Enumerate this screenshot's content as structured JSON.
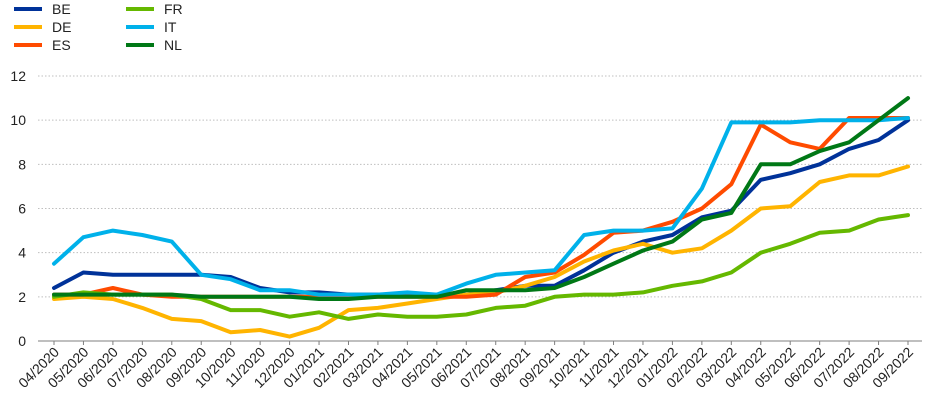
{
  "chart_data": {
    "type": "line",
    "title": "",
    "xlabel": "",
    "ylabel": "",
    "ylim": [
      0,
      12
    ],
    "yticks": [
      0,
      2,
      4,
      6,
      8,
      10,
      12
    ],
    "grid": "horizontal",
    "legend_position": "top-left",
    "x": [
      "04/2020",
      "05/2020",
      "06/2020",
      "07/2020",
      "08/2020",
      "09/2020",
      "10/2020",
      "11/2020",
      "12/2020",
      "01/2021",
      "02/2021",
      "03/2021",
      "04/2021",
      "05/2021",
      "06/2021",
      "07/2021",
      "08/2021",
      "09/2021",
      "10/2021",
      "11/2021",
      "12/2021",
      "01/2022",
      "02/2022",
      "03/2022",
      "04/2022",
      "05/2022",
      "06/2022",
      "07/2022",
      "08/2022",
      "09/2022"
    ],
    "series": [
      {
        "name": "BE",
        "color": "#003299",
        "values": [
          2.4,
          3.1,
          3.0,
          3.0,
          3.0,
          3.0,
          2.9,
          2.4,
          2.2,
          2.2,
          2.1,
          2.1,
          2.1,
          2.1,
          2.1,
          2.3,
          2.5,
          2.5,
          3.2,
          4.0,
          4.5,
          4.8,
          5.6,
          5.9,
          7.3,
          7.6,
          8.0,
          8.7,
          9.1,
          10.0
        ]
      },
      {
        "name": "DE",
        "color": "#FFB400",
        "values": [
          1.9,
          2.0,
          1.9,
          1.5,
          1.0,
          0.9,
          0.4,
          0.5,
          0.2,
          0.6,
          1.4,
          1.5,
          1.7,
          1.9,
          2.1,
          2.2,
          2.5,
          2.9,
          3.6,
          4.1,
          4.4,
          4.0,
          4.2,
          5.0,
          6.0,
          6.1,
          7.2,
          7.5,
          7.5,
          7.9
        ]
      },
      {
        "name": "ES",
        "color": "#FF4B00",
        "values": [
          2.1,
          2.1,
          2.4,
          2.1,
          2.0,
          2.0,
          2.0,
          2.0,
          2.0,
          2.0,
          2.0,
          2.0,
          2.0,
          2.0,
          2.0,
          2.1,
          2.9,
          3.1,
          3.9,
          4.9,
          5.0,
          5.4,
          6.0,
          7.1,
          9.8,
          9.0,
          8.7,
          10.1,
          10.1,
          10.1
        ]
      },
      {
        "name": "FR",
        "color": "#65B800",
        "values": [
          2.0,
          2.2,
          2.1,
          2.1,
          2.1,
          1.9,
          1.4,
          1.4,
          1.1,
          1.3,
          1.0,
          1.2,
          1.1,
          1.1,
          1.2,
          1.5,
          1.6,
          2.0,
          2.1,
          2.1,
          2.2,
          2.5,
          2.7,
          3.1,
          4.0,
          4.4,
          4.9,
          5.0,
          5.5,
          5.7
        ]
      },
      {
        "name": "IT",
        "color": "#00B1EA",
        "values": [
          3.5,
          4.7,
          5.0,
          4.8,
          4.5,
          3.0,
          2.8,
          2.3,
          2.3,
          2.1,
          2.1,
          2.1,
          2.2,
          2.1,
          2.6,
          3.0,
          3.1,
          3.2,
          4.8,
          5.0,
          5.0,
          5.1,
          6.9,
          9.9,
          9.9,
          9.9,
          10.0,
          10.0,
          10.0,
          10.1
        ]
      },
      {
        "name": "NL",
        "color": "#007816",
        "values": [
          2.1,
          2.1,
          2.1,
          2.1,
          2.1,
          2.0,
          2.0,
          2.0,
          2.0,
          1.9,
          1.9,
          2.0,
          2.0,
          2.0,
          2.3,
          2.3,
          2.3,
          2.4,
          2.9,
          3.5,
          4.1,
          4.5,
          5.5,
          5.8,
          8.0,
          8.0,
          8.6,
          9.0,
          10.0,
          11.0
        ]
      }
    ]
  }
}
